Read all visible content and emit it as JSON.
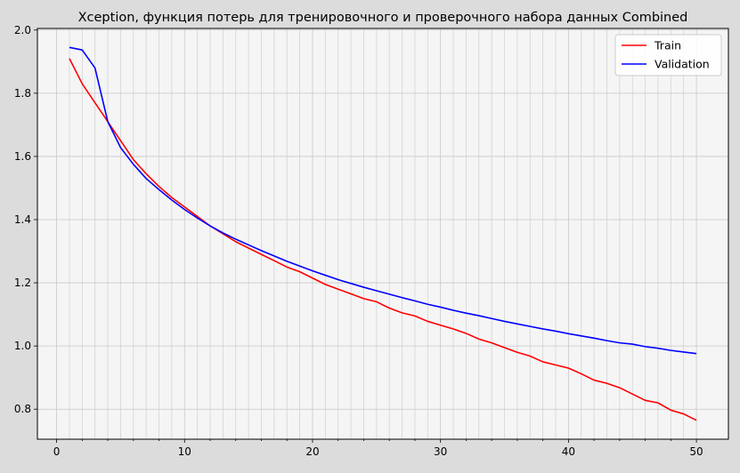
{
  "chart_data": {
    "type": "line",
    "title": "Xception, функция потерь для тренировочного и проверочного набора данных Combined",
    "xlabel": "",
    "ylabel": "",
    "xlim": [
      -1.5,
      52.5
    ],
    "ylim": [
      0.705,
      2.005
    ],
    "xticks": [
      0,
      10,
      20,
      30,
      40,
      50
    ],
    "yticks": [
      0.8,
      1.0,
      1.2,
      1.4,
      1.6,
      1.8,
      2.0
    ],
    "grid": true,
    "legend": "top-right",
    "x": [
      1,
      2,
      3,
      4,
      5,
      6,
      7,
      8,
      9,
      10,
      11,
      12,
      13,
      14,
      15,
      16,
      17,
      18,
      19,
      20,
      21,
      22,
      23,
      24,
      25,
      26,
      27,
      28,
      29,
      30,
      31,
      32,
      33,
      34,
      35,
      36,
      37,
      38,
      39,
      40,
      41,
      42,
      43,
      44,
      45,
      46,
      47,
      48,
      49,
      50
    ],
    "series": [
      {
        "name": "Train",
        "color": "#ff0000",
        "values": [
          1.91,
          1.83,
          1.77,
          1.71,
          1.65,
          1.59,
          1.545,
          1.505,
          1.47,
          1.44,
          1.41,
          1.38,
          1.355,
          1.33,
          1.31,
          1.29,
          1.27,
          1.25,
          1.235,
          1.215,
          1.195,
          1.18,
          1.165,
          1.15,
          1.14,
          1.12,
          1.105,
          1.095,
          1.078,
          1.066,
          1.054,
          1.04,
          1.022,
          1.01,
          0.995,
          0.98,
          0.968,
          0.95,
          0.94,
          0.93,
          0.912,
          0.892,
          0.882,
          0.868,
          0.848,
          0.828,
          0.82,
          0.797,
          0.785,
          0.765
        ]
      },
      {
        "name": "Validation",
        "color": "#0000ff",
        "values": [
          1.945,
          1.937,
          1.88,
          1.71,
          1.628,
          1.575,
          1.53,
          1.495,
          1.462,
          1.432,
          1.405,
          1.38,
          1.358,
          1.338,
          1.32,
          1.302,
          1.285,
          1.268,
          1.253,
          1.238,
          1.224,
          1.21,
          1.198,
          1.186,
          1.175,
          1.164,
          1.153,
          1.143,
          1.132,
          1.123,
          1.113,
          1.104,
          1.096,
          1.087,
          1.078,
          1.07,
          1.062,
          1.054,
          1.047,
          1.039,
          1.032,
          1.025,
          1.017,
          1.01,
          1.006,
          0.998,
          0.993,
          0.986,
          0.981,
          0.976
        ]
      }
    ]
  }
}
